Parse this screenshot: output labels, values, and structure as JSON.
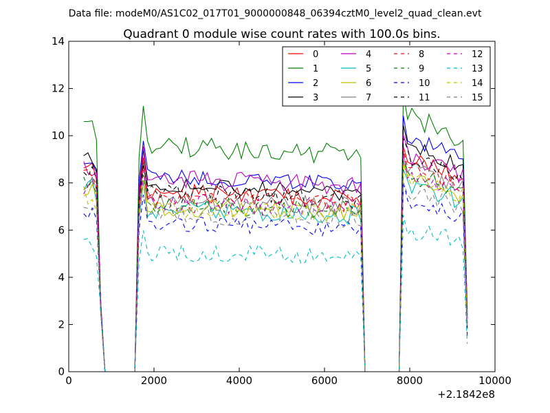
{
  "chart_data": {
    "type": "line",
    "suptitle": "Data file: modeM0/AS1C02_017T01_9000000848_06394cztM0_level2_quad_clean.evt",
    "title": "Quadrant 0 module wise count rates with 100.0s bins.",
    "xlabel": "",
    "ylabel": "",
    "x_offset_label": "+2.1842e8",
    "xlim": [
      0,
      10000
    ],
    "ylim": [
      0,
      14
    ],
    "xticks": [
      0,
      2000,
      4000,
      6000,
      8000,
      10000
    ],
    "yticks": [
      0,
      2,
      4,
      6,
      8,
      10,
      12,
      14
    ],
    "x_start": 350,
    "x_step": 100,
    "legend_location": "top-right",
    "segments": [
      {
        "from": 350,
        "to": 750,
        "shape": "start"
      },
      {
        "from": 1650,
        "to": 6850,
        "shape": "long"
      },
      {
        "from": 7750,
        "to": 9350,
        "shape": "end"
      }
    ],
    "gaps": [
      [
        850,
        1550
      ],
      [
        6950,
        7650
      ]
    ],
    "series": [
      {
        "name": "0",
        "color": "#ff0000",
        "dashed": false,
        "level": 7.6,
        "wiggle": 0.4,
        "seg3": 9.0,
        "start": 8.8
      },
      {
        "name": "1",
        "color": "#008000",
        "dashed": false,
        "level": 9.6,
        "wiggle": 0.45,
        "seg3": 10.9,
        "start": 10.4
      },
      {
        "name": "2",
        "color": "#0000ff",
        "dashed": false,
        "level": 8.3,
        "wiggle": 0.35,
        "seg3": 10.0,
        "start": 9.1
      },
      {
        "name": "3",
        "color": "#000000",
        "dashed": false,
        "level": 7.9,
        "wiggle": 0.35,
        "seg3": 9.6,
        "start": 9.0
      },
      {
        "name": "4",
        "color": "#bf00bf",
        "dashed": false,
        "level": 8.2,
        "wiggle": 0.4,
        "seg3": 9.2,
        "start": 8.6
      },
      {
        "name": "5",
        "color": "#00bfbf",
        "dashed": false,
        "level": 6.9,
        "wiggle": 0.4,
        "seg3": 8.0,
        "start": 7.8
      },
      {
        "name": "6",
        "color": "#bfbf00",
        "dashed": false,
        "level": 7.0,
        "wiggle": 0.4,
        "seg3": 8.2,
        "start": 7.6
      },
      {
        "name": "7",
        "color": "#808080",
        "dashed": false,
        "level": 7.3,
        "wiggle": 0.4,
        "seg3": 8.6,
        "start": 8.0
      },
      {
        "name": "8",
        "color": "#ff0000",
        "dashed": true,
        "level": 7.4,
        "wiggle": 0.4,
        "seg3": 8.7,
        "start": 8.3
      },
      {
        "name": "9",
        "color": "#008000",
        "dashed": true,
        "level": 7.1,
        "wiggle": 0.4,
        "seg3": 8.4,
        "start": 7.9
      },
      {
        "name": "10",
        "color": "#0000ff",
        "dashed": true,
        "level": 6.3,
        "wiggle": 0.35,
        "seg3": 7.3,
        "start": 6.6
      },
      {
        "name": "11",
        "color": "#000000",
        "dashed": true,
        "level": 7.6,
        "wiggle": 0.4,
        "seg3": 9.1,
        "start": 8.6
      },
      {
        "name": "12",
        "color": "#bf00bf",
        "dashed": true,
        "level": 7.2,
        "wiggle": 0.4,
        "seg3": 8.5,
        "start": 7.9
      },
      {
        "name": "13",
        "color": "#00bfbf",
        "dashed": true,
        "level": 5.1,
        "wiggle": 0.4,
        "seg3": 6.1,
        "start": 5.4
      },
      {
        "name": "14",
        "color": "#bfbf00",
        "dashed": true,
        "level": 7.0,
        "wiggle": 0.4,
        "seg3": 8.3,
        "start": 7.5
      },
      {
        "name": "15",
        "color": "#808080",
        "dashed": true,
        "level": 6.7,
        "wiggle": 0.4,
        "seg3": 7.6,
        "start": 7.2
      }
    ]
  }
}
